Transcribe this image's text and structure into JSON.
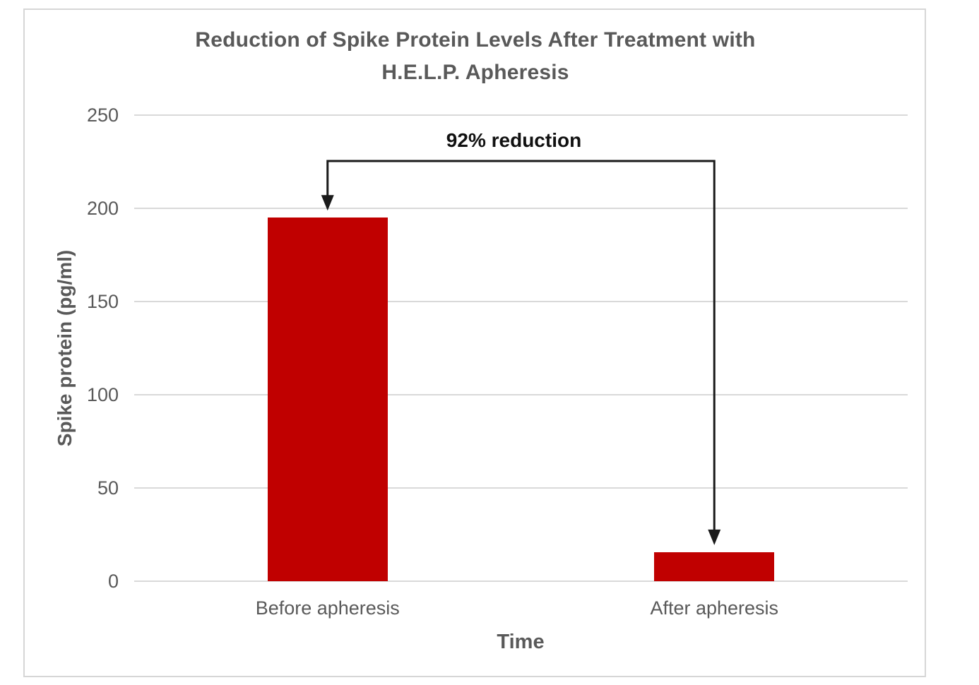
{
  "chart_data": {
    "type": "bar",
    "title": "Reduction of Spike Protein Levels After Treatment with H.E.L.P. Apheresis",
    "title_lines": [
      "Reduction of Spike Protein Levels After Treatment with",
      "H.E.L.P. Apheresis"
    ],
    "categories": [
      "Before apheresis",
      "After apheresis"
    ],
    "values": [
      195,
      15.6
    ],
    "xlabel": "Time",
    "ylabel": "Spike protein (pg/ml)",
    "ylim": [
      0,
      250
    ],
    "yticks": [
      0,
      50,
      100,
      150,
      200,
      250
    ],
    "grid": true,
    "legend": "none",
    "annotation": {
      "label": "92% reduction",
      "from_category": "Before apheresis",
      "to_category": "After apheresis"
    }
  },
  "colors": {
    "bar": "#c00000",
    "axis_text": "#595959",
    "gridline": "#d9d9d9",
    "frame_border": "#d6d6d6",
    "annotation_text": "#111111",
    "arrow": "#1a1a1a"
  }
}
